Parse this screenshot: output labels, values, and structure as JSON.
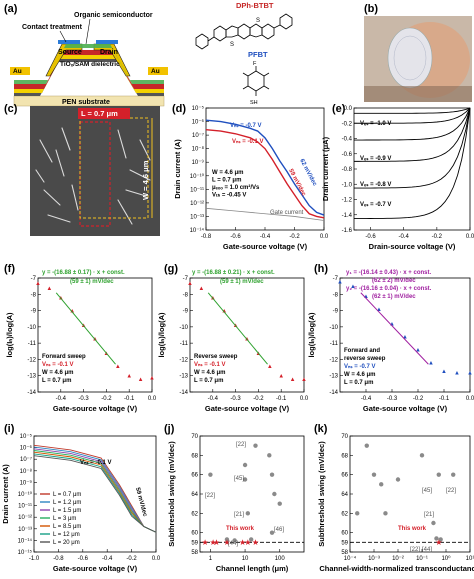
{
  "panel_letters": [
    "(a)",
    "(b)",
    "(c)",
    "(d)",
    "(e)",
    "(f)",
    "(g)",
    "(h)",
    "(i)",
    "(j)",
    "(k)"
  ],
  "panel_a": {
    "labels": {
      "organic": "Organic semiconductor",
      "contact": "Contact treatment",
      "source": "Source",
      "drain": "Drain",
      "dielectric": "TiOₓ/SAM dielectric",
      "au_left": "Au",
      "au_right": "Au",
      "gate": "Ti gate",
      "substrate": "PEN substrate"
    },
    "molecules": {
      "dph_btbt": "DPh-BTBT",
      "pfbt": "PFBT",
      "s1": "S",
      "s2": "S",
      "f": "F",
      "sh": "SH"
    }
  },
  "panel_c": {
    "L": "L = 0.7 μm",
    "W": "W = 4.6 μm"
  },
  "colors": {
    "blue": "#1f4fbf",
    "red": "#d4202a",
    "green": "#2ea12e",
    "purple": "#a020a0",
    "gray": "#888888"
  },
  "chart_data": [
    {
      "panel": "d",
      "type": "line",
      "xlabel": "Gate-source voltage (V)",
      "ylabel": "Drain current (A)",
      "xlim": [
        -0.8,
        0.0
      ],
      "ylim_log10": [
        -14,
        -5
      ],
      "x_ticks": [
        "-0.8",
        "-0.6",
        "-0.4",
        "-0.2",
        "0.0"
      ],
      "y_ticks": [
        "10⁻⁵",
        "10⁻⁶",
        "10⁻⁷",
        "10⁻⁸",
        "10⁻⁹",
        "10⁻¹⁰",
        "10⁻¹¹",
        "10⁻¹²",
        "10⁻¹³",
        "10⁻¹⁴"
      ],
      "annotations": {
        "vds1": "Vₙₛ = -0.7 V",
        "vds2": "Vₙₛ = -0.1 V",
        "slope1": "62 mV/dec",
        "slope2": "59 mV/dec",
        "params": [
          "W = 4.6 μm",
          "L = 0.7 μm",
          "μₑₒₒ = 1.0 cm²/Vs",
          "Vₜₕ = -0.45 V"
        ],
        "gate": "Gate current"
      },
      "series": [
        {
          "name": "V_DS = -0.7 V",
          "color": "#1f4fbf",
          "x": [
            -0.8,
            -0.7,
            -0.6,
            -0.5,
            -0.45,
            -0.4,
            -0.35,
            -0.3,
            -0.25,
            -0.2,
            -0.15,
            -0.1,
            -0.05,
            0.0
          ],
          "y_log10": [
            -5.9,
            -6.0,
            -6.2,
            -6.5,
            -6.7,
            -7.2,
            -8.0,
            -8.9,
            -9.7,
            -10.6,
            -11.4,
            -12.2,
            -12.7,
            -12.9
          ]
        },
        {
          "name": "V_DS = -0.1 V",
          "color": "#d4202a",
          "x": [
            -0.8,
            -0.7,
            -0.6,
            -0.5,
            -0.45,
            -0.4,
            -0.35,
            -0.3,
            -0.25,
            -0.2,
            -0.15,
            -0.1,
            -0.05,
            0.0
          ],
          "y_log10": [
            -6.6,
            -6.7,
            -6.9,
            -7.2,
            -7.5,
            -8.0,
            -8.8,
            -9.7,
            -10.6,
            -11.4,
            -12.2,
            -12.8,
            -13.0,
            -13.1
          ]
        },
        {
          "name": "Gate current",
          "color": "#888888",
          "x": [
            -0.8,
            -0.6,
            -0.4,
            -0.2,
            0.0
          ],
          "y_log10": [
            -12.4,
            -12.6,
            -12.8,
            -13.0,
            -13.3
          ]
        }
      ]
    },
    {
      "panel": "e",
      "type": "line",
      "xlabel": "Drain-source voltage (V)",
      "ylabel": "Drain current (μA)",
      "xlim": [
        -0.7,
        0.0
      ],
      "ylim": [
        -1.6,
        0.0
      ],
      "x_ticks": [
        "-0.6",
        "-0.4",
        "-0.2",
        "0.0"
      ],
      "y_ticks": [
        "0.0",
        "-0.2",
        "-0.4",
        "-0.6",
        "-0.8",
        "-1.0",
        "-1.2",
        "-1.4",
        "-1.6"
      ],
      "curve_labels": [
        "Vₑₛ = -1.0 V",
        "Vₑₛ = -0.9 V",
        "Vₑₛ = -0.8 V",
        "Vₑₛ = -0.7 V"
      ],
      "series": [
        {
          "name": "V_GS = -1.0 V",
          "saturation": -1.45
        },
        {
          "name": "V_GS = -0.9 V",
          "saturation": -1.05
        },
        {
          "name": "V_GS = -0.8 V",
          "saturation": -0.7
        },
        {
          "name": "V_GS = -0.7 V",
          "saturation": -0.42
        },
        {
          "name": "V_GS = -0.6 V",
          "saturation": -0.2
        },
        {
          "name": "V_GS = -0.5 V",
          "saturation": -0.07
        }
      ]
    },
    {
      "panel": "f",
      "type": "scatter",
      "xlabel": "Gate-source voltage (V)",
      "ylabel": "log(Iₙ)/log(A)",
      "xlim": [
        -0.5,
        0.0
      ],
      "ylim": [
        -14,
        -7
      ],
      "fit": "y = -(16.88 ± 0.17) · x + const.",
      "ss": "(59 ± 1) mV/dec",
      "notes": [
        "Forward sweep",
        "Vₙₛ = -0.1 V",
        "W = 4.6 μm",
        "L = 0.7 μm"
      ],
      "points_color": "#d4202a",
      "fit_color": "#2ea12e",
      "x": [
        -0.5,
        -0.45,
        -0.4,
        -0.35,
        -0.3,
        -0.25,
        -0.2,
        -0.15,
        -0.1,
        -0.05,
        0.0
      ],
      "y": [
        -7.3,
        -7.6,
        -8.2,
        -9.0,
        -9.9,
        -10.7,
        -11.6,
        -12.4,
        -13.0,
        -13.2,
        -13.1
      ]
    },
    {
      "panel": "g",
      "type": "scatter",
      "xlabel": "Gate-source voltage (V)",
      "ylabel": "log(Iₙ)/log(A)",
      "xlim": [
        -0.5,
        0.0
      ],
      "ylim": [
        -14,
        -7
      ],
      "fit": "y = -(16.88 ± 0.21) · x + const.",
      "ss": "(59 ± 1) mV/dec",
      "notes": [
        "Reverse sweep",
        "Vₙₛ = -0.1 V",
        "W = 4.6 μm",
        "L = 0.7 μm"
      ],
      "points_color": "#d4202a",
      "fit_color": "#2ea12e",
      "x": [
        -0.5,
        -0.45,
        -0.4,
        -0.35,
        -0.3,
        -0.25,
        -0.2,
        -0.15,
        -0.1,
        -0.05,
        0.0
      ],
      "y": [
        -7.3,
        -7.6,
        -8.2,
        -9.0,
        -9.9,
        -10.7,
        -11.6,
        -12.4,
        -13.0,
        -13.2,
        -13.2
      ]
    },
    {
      "panel": "h",
      "type": "scatter",
      "xlabel": "Gate-source voltage (V)",
      "ylabel": "log(Iₙ)/log(A)",
      "xlim": [
        -0.5,
        0.0
      ],
      "ylim": [
        -14,
        -7
      ],
      "fit1": "y₁ = -(16.14 ± 0.43) · x + const.",
      "ss1": "(62 ± 2) mV/dec",
      "fit2": "y₂ = -(16.16 ± 0.04) · x + const.",
      "ss2": "(62 ± 1) mV/dec",
      "notes": [
        "Forward and",
        "reverse sweep",
        "Vₙₛ = -0.7 V",
        "W = 4.6 μm",
        "L = 0.7 μm"
      ],
      "points_color": "#1f4fbf",
      "fit_color": "#a020a0",
      "x": [
        -0.5,
        -0.45,
        -0.4,
        -0.35,
        -0.3,
        -0.25,
        -0.2,
        -0.15,
        -0.1,
        -0.05,
        0.0
      ],
      "y": [
        -7.2,
        -7.5,
        -8.1,
        -8.9,
        -9.8,
        -10.6,
        -11.4,
        -12.2,
        -12.7,
        -12.8,
        -12.8
      ]
    },
    {
      "panel": "i",
      "type": "line",
      "xlabel": "Gate-source voltage (V)",
      "ylabel": "Drain current (A)",
      "xlim": [
        -1.0,
        0.0
      ],
      "ylim_log10": [
        -15,
        -5
      ],
      "x_ticks": [
        "-1.0",
        "-0.8",
        "-0.6",
        "-0.4",
        "-0.2",
        "0.0"
      ],
      "y_ticks": [
        "10⁻⁵",
        "10⁻⁶",
        "10⁻⁷",
        "10⁻⁸",
        "10⁻⁹",
        "10⁻¹⁰",
        "10⁻¹¹",
        "10⁻¹²",
        "10⁻¹³",
        "10⁻¹⁴",
        "10⁻¹⁵"
      ],
      "annotations": {
        "vds": "Vₙₛ = -0.1 V",
        "slope": "59 mV/dec"
      },
      "legend": [
        {
          "name": "L = 0.7 μm",
          "color": "#c0392b"
        },
        {
          "name": "L = 1.2 μm",
          "color": "#2e86c1"
        },
        {
          "name": "L = 1.5 μm",
          "color": "#8e44ad"
        },
        {
          "name": "L = 3 μm",
          "color": "#27ae60"
        },
        {
          "name": "L = 8.5 μm",
          "color": "#d35400"
        },
        {
          "name": "L = 12 μm",
          "color": "#16a085"
        },
        {
          "name": "L = 20 μm",
          "color": "#555555"
        }
      ]
    },
    {
      "panel": "j",
      "type": "scatter",
      "xlabel": "Channel length (μm)",
      "ylabel": "Subthreshold swing (mV/dec)",
      "xlim_log10": [
        -0.3,
        2.7
      ],
      "ylim": [
        58,
        70
      ],
      "x_ticks": [
        "1",
        "10",
        "100"
      ],
      "y_ticks": [
        "58",
        "59",
        "60",
        "62",
        "64",
        "66",
        "68",
        "70"
      ],
      "this_work_label": "This work",
      "refs": [
        "[22]",
        "[45]",
        "[21]",
        "[46]",
        "[44]",
        "[22]"
      ],
      "points": [
        [
          1.0,
          66
        ],
        [
          10,
          67
        ],
        [
          10,
          65.5
        ],
        [
          20,
          69
        ],
        [
          50,
          68
        ],
        [
          60,
          66
        ],
        [
          70,
          64
        ],
        [
          100,
          63
        ],
        [
          12,
          62
        ],
        [
          60,
          60
        ],
        [
          15,
          59.3
        ],
        [
          5,
          59.2
        ],
        [
          3,
          59.3
        ]
      ],
      "this_work": [
        [
          0.7,
          59
        ],
        [
          1.2,
          59
        ],
        [
          1.5,
          59
        ],
        [
          3,
          59
        ],
        [
          8.5,
          59
        ],
        [
          12,
          59
        ],
        [
          20,
          59
        ]
      ]
    },
    {
      "panel": "k",
      "type": "scatter",
      "xlabel": "Channel-width-normalized transconductance (S/m)",
      "ylabel": "Subthreshold swing (mV/dec)",
      "xlim_log10": [
        -4,
        1
      ],
      "ylim": [
        58,
        70
      ],
      "x_ticks": [
        "10⁻⁴",
        "10⁻³",
        "10⁻²",
        "10⁻¹",
        "10⁰",
        "10¹"
      ],
      "y_ticks": [
        "58",
        "59",
        "60",
        "62",
        "64",
        "66",
        "68",
        "70"
      ],
      "this_work_label": "This work",
      "refs": [
        "[45]",
        "[22]",
        "[21]",
        "[22]",
        "[44]"
      ],
      "points": [
        [
          0.0002,
          62
        ],
        [
          0.0005,
          69
        ],
        [
          0.001,
          66
        ],
        [
          0.002,
          65
        ],
        [
          0.003,
          62
        ],
        [
          0.01,
          65.5
        ],
        [
          0.1,
          68
        ],
        [
          0.3,
          61
        ],
        [
          0.5,
          66
        ],
        [
          2,
          66
        ],
        [
          0.4,
          59.4
        ],
        [
          0.6,
          59.3
        ]
      ],
      "this_work": [
        [
          0.5,
          59
        ]
      ]
    }
  ]
}
